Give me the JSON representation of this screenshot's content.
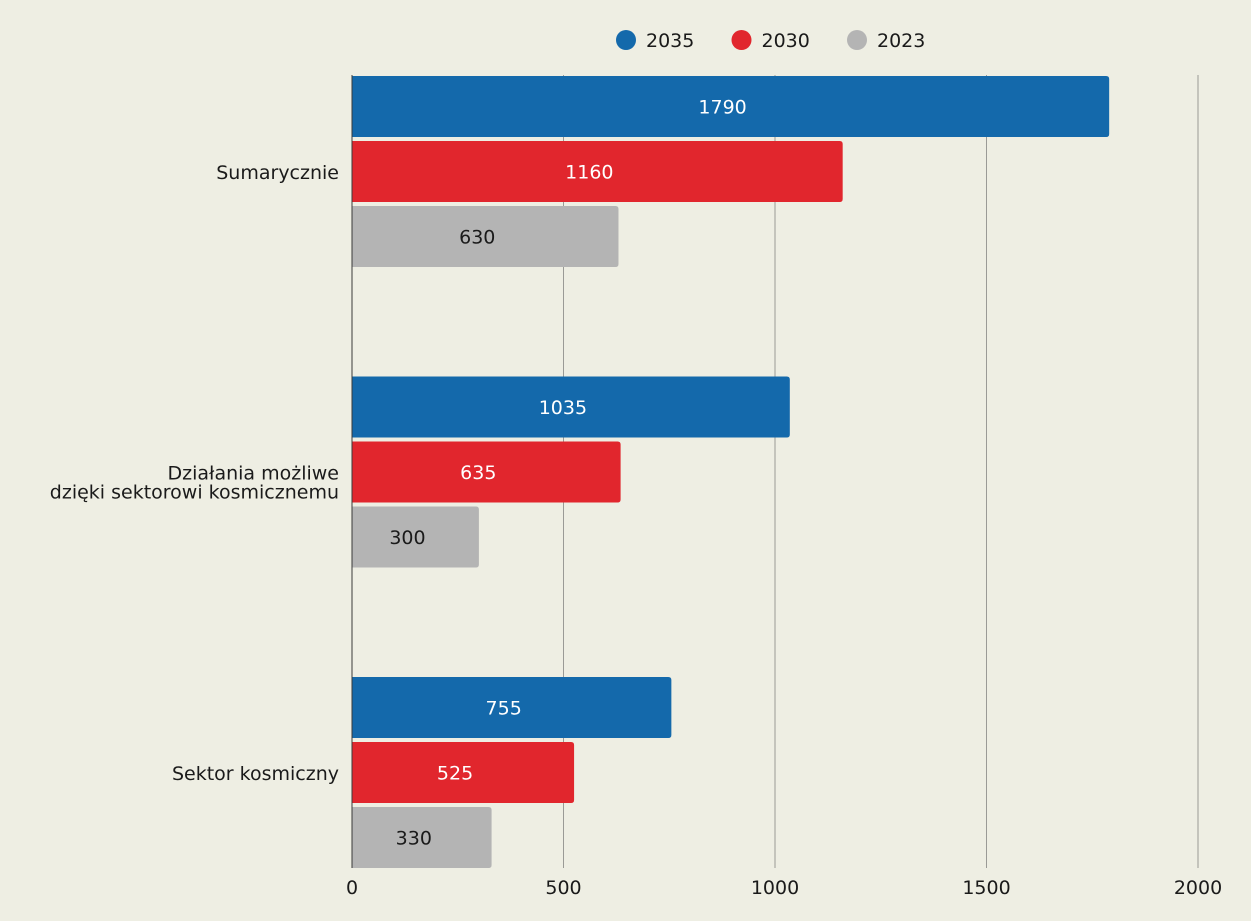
{
  "chart_data": {
    "type": "bar",
    "orientation": "horizontal",
    "categories": [
      [
        "Sumarycznie"
      ],
      [
        "Działania możliwe",
        "dzięki sektorowi kosmicznemu"
      ],
      [
        "Sektor kosmiczny"
      ]
    ],
    "series": [
      {
        "name": "2035",
        "color": "#1469ab",
        "label_color": "#ffffff",
        "values": [
          1790,
          1035,
          755
        ]
      },
      {
        "name": "2030",
        "color": "#e1262d",
        "label_color": "#ffffff",
        "values": [
          1160,
          635,
          525
        ]
      },
      {
        "name": "2023",
        "color": "#b4b4b4",
        "label_color": "#1a1a1a",
        "values": [
          630,
          300,
          330
        ]
      }
    ],
    "xlim": [
      0,
      2000
    ],
    "xticks": [
      0,
      500,
      1000,
      1500,
      2000
    ],
    "grid": true,
    "legend": "top-center"
  }
}
